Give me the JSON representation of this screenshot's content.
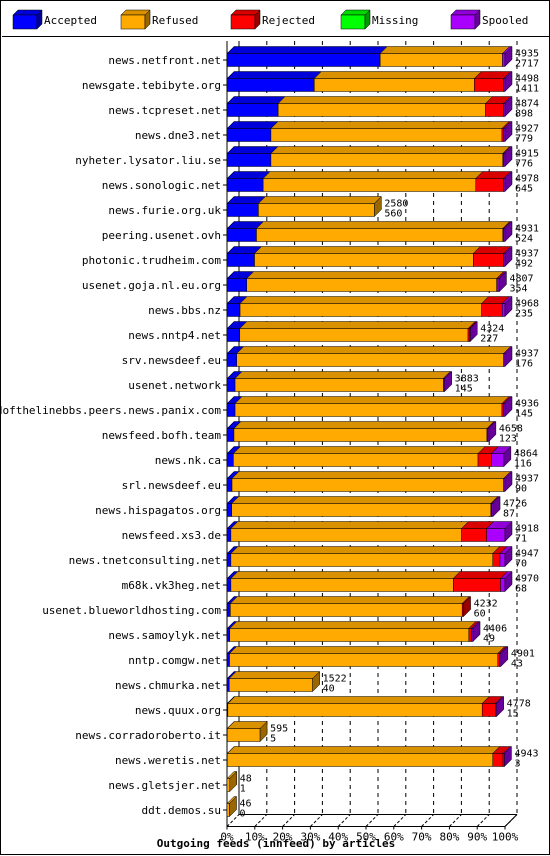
{
  "chart_data": {
    "type": "bar",
    "orientation": "horizontal",
    "stacked": true,
    "title": "Outgoing feeds (innfeed) by articles",
    "xlabel": "",
    "ylabel": "",
    "xlim": [
      0,
      100
    ],
    "x_ticks": [
      "0%",
      "10%",
      "20%",
      "30%",
      "40%",
      "50%",
      "60%",
      "70%",
      "80%",
      "90%",
      "100%"
    ],
    "legend": [
      {
        "name": "Accepted",
        "color": "#0000ff"
      },
      {
        "name": "Refused",
        "color": "#ffaa00"
      },
      {
        "name": "Rejected",
        "color": "#ff0000"
      },
      {
        "name": "Missing",
        "color": "#00ff00"
      },
      {
        "name": "Spooled",
        "color": "#aa00ff"
      }
    ],
    "legend_position": "top",
    "rows": [
      {
        "name": "news.netfront.net",
        "total": "4935",
        "accepted": "2717",
        "segments": [
          55.1,
          44.0,
          0,
          0,
          0.9
        ]
      },
      {
        "name": "newsgate.tebibyte.org",
        "total": "4498",
        "accepted": "1411",
        "segments": [
          31.4,
          57.6,
          10.5,
          0,
          0.5
        ]
      },
      {
        "name": "news.tcpreset.net",
        "total": "4874",
        "accepted": "898",
        "segments": [
          18.4,
          74.6,
          6.5,
          0,
          0.5
        ]
      },
      {
        "name": "news.dne3.net",
        "total": "4927",
        "accepted": "779",
        "segments": [
          15.8,
          83.1,
          0.6,
          0,
          0.5
        ]
      },
      {
        "name": "nyheter.lysator.liu.se",
        "total": "4915",
        "accepted": "776",
        "segments": [
          15.8,
          83.4,
          0.3,
          0,
          0.5
        ]
      },
      {
        "name": "news.sonologic.net",
        "total": "4978",
        "accepted": "645",
        "segments": [
          13.0,
          76.5,
          10.0,
          0,
          0.5
        ]
      },
      {
        "name": "news.furie.org.uk",
        "total": "2580",
        "accepted": "560",
        "segments": [
          11.3,
          41.7,
          0,
          0,
          0
        ]
      },
      {
        "name": "peering.usenet.ovh",
        "total": "4931",
        "accepted": "524",
        "segments": [
          10.6,
          88.6,
          0.3,
          0,
          0.5
        ]
      },
      {
        "name": "photonic.trudheim.com",
        "total": "4937",
        "accepted": "492",
        "segments": [
          9.9,
          78.7,
          10.9,
          0,
          0.5
        ]
      },
      {
        "name": "usenet.goja.nl.eu.org",
        "total": "4807",
        "accepted": "354",
        "segments": [
          7.1,
          89.9,
          0.5,
          0,
          0.5
        ]
      },
      {
        "name": "news.bbs.nz",
        "total": "4968",
        "accepted": "235",
        "segments": [
          4.7,
          86.9,
          7.4,
          0,
          1.0
        ]
      },
      {
        "name": "news.nntp4.net",
        "total": "4324",
        "accepted": "227",
        "segments": [
          4.6,
          82.1,
          0.5,
          0,
          0.3
        ]
      },
      {
        "name": "srv.newsdeef.eu",
        "total": "4937",
        "accepted": "176",
        "segments": [
          3.5,
          96.0,
          0,
          0,
          0.5
        ]
      },
      {
        "name": "usenet.network",
        "total": "3883",
        "accepted": "145",
        "segments": [
          2.9,
          74.9,
          0,
          0,
          0.5
        ]
      },
      {
        "name": "endofthelinebbs.peers.news.panix.com",
        "total": "4936",
        "accepted": "145",
        "segments": [
          2.9,
          96.0,
          0.6,
          0,
          0.5
        ]
      },
      {
        "name": "newsfeed.bofh.team",
        "total": "4658",
        "accepted": "123",
        "segments": [
          2.5,
          91.0,
          0.2,
          0,
          0.5
        ]
      },
      {
        "name": "news.nk.ca",
        "total": "4864",
        "accepted": "116",
        "segments": [
          2.3,
          88.0,
          4.8,
          0,
          4.5
        ]
      },
      {
        "name": "srl.newsdeef.eu",
        "total": "4937",
        "accepted": "90",
        "segments": [
          1.8,
          97.7,
          0,
          0,
          0.5
        ]
      },
      {
        "name": "news.hispagatos.org",
        "total": "4726",
        "accepted": "87",
        "segments": [
          1.7,
          93.2,
          0.3,
          0,
          0.5
        ]
      },
      {
        "name": "newsfeed.xs3.de",
        "total": "4918",
        "accepted": "71",
        "segments": [
          1.4,
          83.0,
          9.0,
          0,
          6.6
        ]
      },
      {
        "name": "news.tnetconsulting.net",
        "total": "4947",
        "accepted": "70",
        "segments": [
          1.4,
          94.2,
          2.6,
          0,
          1.8
        ]
      },
      {
        "name": "m68k.vk3heg.net",
        "total": "4970",
        "accepted": "68",
        "segments": [
          1.4,
          80.0,
          17.0,
          0,
          1.6
        ]
      },
      {
        "name": "usenet.blueworldhosting.com",
        "total": "4232",
        "accepted": "60",
        "segments": [
          1.2,
          83.4,
          0.5,
          0,
          0
        ]
      },
      {
        "name": "news.samoylyk.net",
        "total": "4406",
        "accepted": "49",
        "segments": [
          1.0,
          86.0,
          1.0,
          0,
          0.5
        ]
      },
      {
        "name": "nntp.comgw.net",
        "total": "4901",
        "accepted": "43",
        "segments": [
          0.9,
          96.5,
          0.6,
          0,
          0.5
        ]
      },
      {
        "name": "news.chmurka.net",
        "total": "1522",
        "accepted": "40",
        "segments": [
          0.8,
          30.0,
          0,
          0,
          0
        ]
      },
      {
        "name": "news.quux.org",
        "total": "4778",
        "accepted": "15",
        "segments": [
          0.3,
          91.5,
          4.7,
          0,
          0.5
        ]
      },
      {
        "name": "news.corradoroberto.it",
        "total": "595",
        "accepted": "5",
        "segments": [
          0.1,
          11.8,
          0,
          0,
          0
        ]
      },
      {
        "name": "news.weretis.net",
        "total": "4943",
        "accepted": "3",
        "segments": [
          0.1,
          95.5,
          3.7,
          0,
          0.5
        ]
      },
      {
        "name": "news.gletsjer.net",
        "total": "48",
        "accepted": "1",
        "segments": [
          0,
          1.0,
          0,
          0,
          0
        ]
      },
      {
        "name": "ddt.demos.su",
        "total": "46",
        "accepted": "0",
        "segments": [
          0,
          0.9,
          0,
          0,
          0
        ]
      }
    ]
  }
}
